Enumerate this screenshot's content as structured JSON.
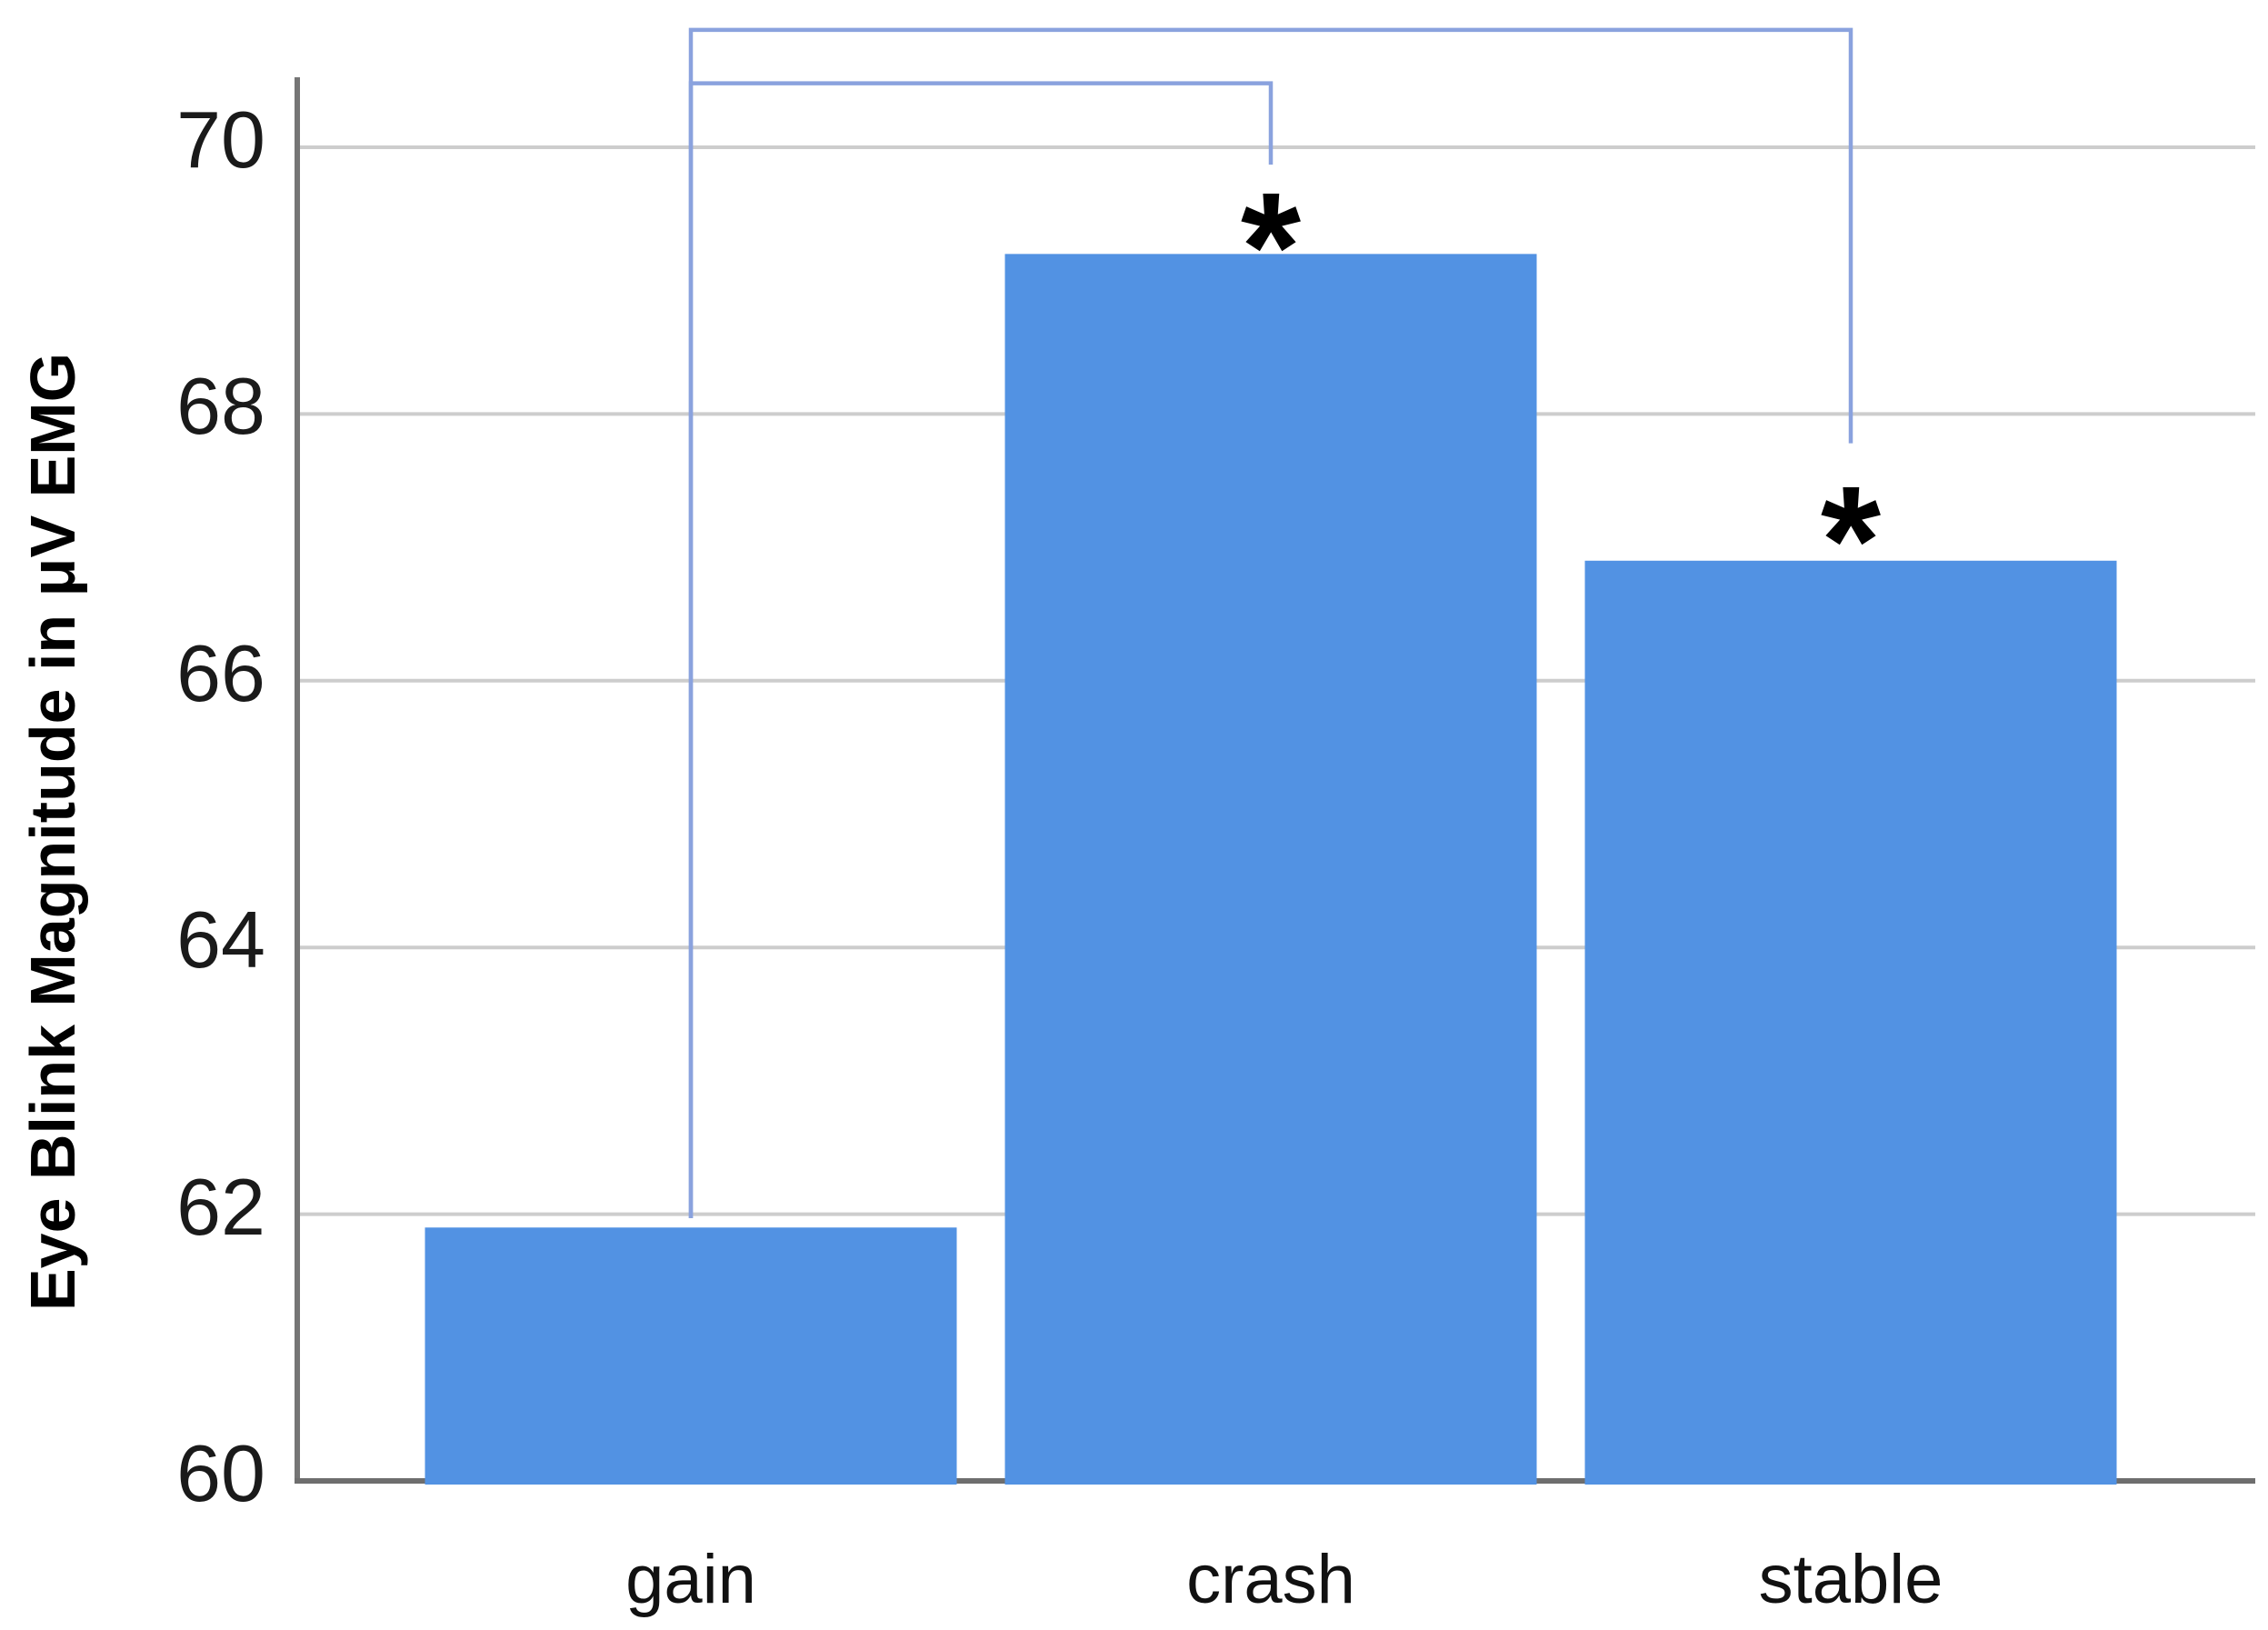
{
  "chart_data": {
    "type": "bar",
    "title": "",
    "xlabel": "",
    "ylabel": "Eye Blink Magnitude in μV EMG",
    "categories": [
      "gain",
      "crash",
      "stable"
    ],
    "values": [
      61.9,
      69.2,
      66.9
    ],
    "ylim": [
      60,
      70.9
    ],
    "yticks": [
      60,
      62,
      64,
      66,
      68,
      70
    ],
    "ytick_labels": [
      "60",
      "62",
      "64",
      "66",
      "68",
      "70"
    ],
    "grid": "horizontal",
    "legend": "none",
    "annotations": [
      {
        "text": "*",
        "category": "crash",
        "y": 69.5
      },
      {
        "text": "*",
        "category": "stable",
        "y": 67.3
      }
    ],
    "significance_brackets": [
      {
        "from": "gain",
        "to": "stable",
        "y_top": 70.88,
        "from_drop_y": 61.97,
        "to_drop_y": 67.78
      },
      {
        "from": "gain",
        "to": "crash",
        "y_top": 70.48,
        "from_drop_y": 61.97,
        "to_drop_y": 69.87
      }
    ],
    "colors": {
      "bar": "#5292e3",
      "bracket": "#8aa2de",
      "gridline": "#cdcdcd",
      "x_axis": "#6e6e6e",
      "y_axis": "#757575",
      "text": "#111111"
    }
  }
}
